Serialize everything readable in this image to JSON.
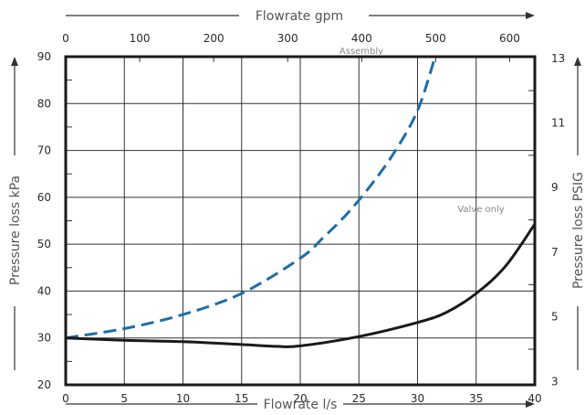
{
  "chart_data": {
    "type": "line",
    "top_axis": {
      "label": "Flowrate gpm",
      "ticks": [
        0,
        100,
        200,
        300,
        400,
        500,
        600
      ],
      "range": [
        0,
        634
      ]
    },
    "bottom_axis": {
      "label": "Flowrate l/s",
      "ticks": [
        0,
        5,
        10,
        15,
        20,
        25,
        30,
        35,
        40
      ],
      "range": [
        0,
        40
      ]
    },
    "left_axis": {
      "label": "Pressure loss kPa",
      "ticks": [
        20,
        30,
        40,
        50,
        60,
        70,
        80,
        90
      ],
      "range": [
        20,
        90
      ]
    },
    "right_axis": {
      "label": "Pressure loss PSIG",
      "ticks": [
        3,
        5,
        7,
        9,
        11,
        13
      ],
      "range": [
        2.9,
        13.05
      ]
    },
    "grid": true,
    "series": [
      {
        "name": "Assembly",
        "style": "dashed",
        "color": "#1b6ea8",
        "x": [
          0,
          5,
          10,
          15,
          20,
          22,
          24,
          26,
          28,
          30,
          31.5
        ],
        "y": [
          30,
          32,
          35,
          39.5,
          47,
          51.5,
          56.5,
          62.5,
          69.5,
          78.5,
          90
        ]
      },
      {
        "name": "Valve only",
        "style": "solid",
        "color": "#1a1a1a",
        "x": [
          0,
          5,
          10,
          15,
          18,
          20,
          25,
          30,
          32.5,
          35,
          37.5,
          40
        ],
        "y": [
          30,
          29.5,
          29.2,
          28.6,
          28.2,
          28.3,
          30.3,
          33.3,
          35.5,
          39.5,
          45.3,
          54.3
        ]
      }
    ]
  }
}
